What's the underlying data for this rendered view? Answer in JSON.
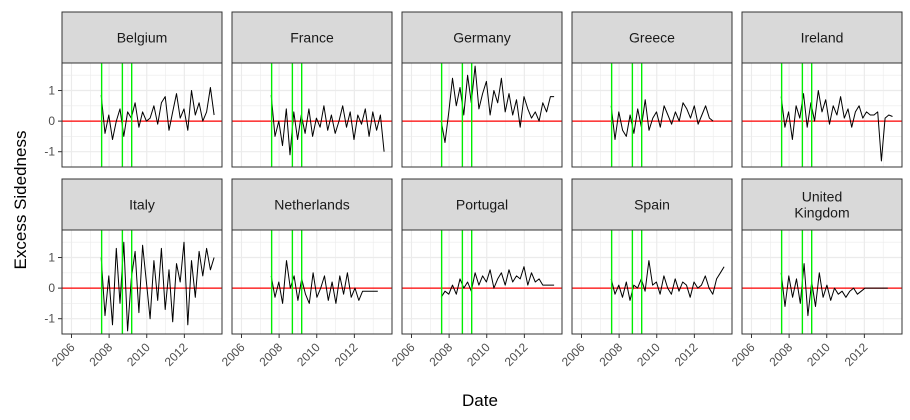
{
  "chart_data": {
    "type": "line",
    "layout": "faceted-grid-2x5",
    "xlabel": "Date",
    "ylabel": "Excess Sidedness",
    "xlim": [
      "2005-07-01",
      "2014-01-01"
    ],
    "ylim": [
      -1.5,
      1.9
    ],
    "x_ticks": [
      "2006",
      "2008",
      "2010",
      "2012"
    ],
    "y_ticks": [
      -1,
      0,
      1
    ],
    "grid": true,
    "colors": {
      "series": "#000000",
      "zero_line": "#ff0000",
      "event_lines": "#00ee00",
      "strip": "#d9d9d9",
      "grid": "#ebebeb"
    },
    "reference_lines": {
      "horizontal": [
        0
      ],
      "vertical": [
        "2007-08-09",
        "2008-09-15",
        "2009-03-15"
      ]
    },
    "facets": [
      {
        "name": "Belgium",
        "start": "2007-08-01",
        "end": "2013-08-01",
        "values": [
          0.85,
          -0.4,
          0.2,
          -0.6,
          0.0,
          0.4,
          -0.5,
          0.3,
          0.1,
          0.6,
          -0.2,
          0.3,
          0.0,
          0.1,
          0.5,
          -0.1,
          0.6,
          0.8,
          -0.3,
          0.3,
          0.9,
          0.1,
          0.4,
          -0.3,
          1.0,
          0.2,
          0.6,
          0.0,
          0.3,
          1.1,
          0.2
        ]
      },
      {
        "name": "France",
        "start": "2007-08-01",
        "end": "2013-08-01",
        "values": [
          0.85,
          -0.5,
          0.0,
          -0.8,
          0.4,
          -1.1,
          0.3,
          -0.6,
          0.2,
          -0.4,
          0.4,
          -0.5,
          0.1,
          -0.2,
          0.5,
          -0.3,
          0.2,
          -0.4,
          0.0,
          0.5,
          -0.2,
          0.3,
          -0.6,
          0.2,
          -0.1,
          0.4,
          -0.5,
          0.3,
          -0.3,
          0.2,
          -1.0
        ]
      },
      {
        "name": "Germany",
        "start": "2007-08-01",
        "end": "2013-08-01",
        "values": [
          0.0,
          -0.7,
          0.3,
          1.4,
          0.5,
          1.1,
          0.2,
          1.5,
          0.6,
          1.8,
          0.4,
          0.9,
          1.3,
          0.2,
          1.0,
          0.6,
          1.4,
          0.3,
          0.9,
          0.2,
          0.7,
          -0.2,
          0.8,
          0.4,
          0.1,
          0.3,
          0.0,
          0.6,
          0.3,
          0.8,
          0.8
        ]
      },
      {
        "name": "Greece",
        "start": "2007-08-01",
        "end": "2013-01-01",
        "values": [
          0.5,
          -0.6,
          0.3,
          -0.3,
          -0.5,
          0.2,
          -0.4,
          0.4,
          -0.2,
          0.7,
          -0.3,
          0.1,
          0.3,
          -0.2,
          0.5,
          0.2,
          -0.1,
          0.3,
          0.0,
          0.6,
          0.4,
          0.1,
          0.5,
          -0.1,
          0.2,
          0.5,
          0.1,
          0.0
        ]
      },
      {
        "name": "Ireland",
        "start": "2007-08-01",
        "end": "2013-07-01",
        "values": [
          0.8,
          -0.2,
          0.3,
          -0.6,
          0.5,
          0.1,
          0.9,
          -0.2,
          0.6,
          0.0,
          1.0,
          0.3,
          0.7,
          -0.1,
          0.5,
          0.2,
          0.8,
          0.1,
          0.4,
          -0.2,
          0.3,
          0.5,
          0.1,
          0.3,
          0.2,
          0.2,
          0.3,
          -1.3,
          0.1,
          0.2,
          0.15
        ]
      },
      {
        "name": "Italy",
        "start": "2007-08-01",
        "end": "2013-08-01",
        "values": [
          1.0,
          -0.9,
          0.4,
          -1.2,
          1.3,
          -0.5,
          1.5,
          -1.4,
          0.3,
          1.2,
          -0.8,
          1.4,
          0.2,
          -1.0,
          0.9,
          -0.4,
          1.3,
          -0.7,
          0.6,
          -1.1,
          0.8,
          0.2,
          1.5,
          -1.2,
          0.9,
          -0.3,
          1.2,
          0.4,
          1.3,
          0.6,
          1.0
        ]
      },
      {
        "name": "Netherlands",
        "start": "2007-08-01",
        "end": "2013-04-01",
        "values": [
          0.4,
          -0.3,
          0.2,
          -0.5,
          0.9,
          0.0,
          0.4,
          -0.4,
          0.3,
          -0.2,
          -0.5,
          0.5,
          -0.3,
          0.0,
          0.4,
          -0.4,
          0.2,
          -0.5,
          0.4,
          -0.2,
          0.5,
          -0.3,
          0.0,
          -0.4,
          -0.1,
          -0.1,
          -0.1,
          -0.1,
          -0.1
        ]
      },
      {
        "name": "Portugal",
        "start": "2007-08-01",
        "end": "2013-08-01",
        "values": [
          -0.3,
          -0.1,
          -0.2,
          0.1,
          -0.2,
          0.3,
          0.0,
          0.2,
          -0.1,
          0.5,
          0.1,
          0.4,
          0.2,
          0.6,
          0.0,
          0.3,
          0.5,
          0.1,
          0.6,
          0.2,
          0.4,
          0.3,
          0.7,
          0.1,
          0.5,
          0.2,
          0.3,
          0.1,
          0.1,
          0.1,
          0.1
        ]
      },
      {
        "name": "Spain",
        "start": "2007-08-01",
        "end": "2013-08-01",
        "values": [
          0.3,
          -0.2,
          0.1,
          -0.3,
          0.2,
          -0.4,
          0.1,
          0.0,
          0.3,
          -0.1,
          0.9,
          0.1,
          0.2,
          -0.2,
          0.4,
          0.0,
          -0.2,
          0.3,
          -0.1,
          0.2,
          0.1,
          -0.3,
          0.2,
          0.0,
          0.1,
          0.4,
          0.0,
          -0.2,
          0.3,
          0.5,
          0.7
        ]
      },
      {
        "name": "United\nKingdom",
        "start": "2007-08-01",
        "end": "2013-04-01",
        "values": [
          0.5,
          -0.6,
          0.4,
          -0.3,
          0.3,
          -0.5,
          0.8,
          -0.9,
          0.2,
          -0.6,
          0.5,
          -0.3,
          0.1,
          -0.4,
          0.0,
          -0.2,
          -0.1,
          -0.3,
          -0.1,
          0.0,
          -0.2,
          -0.1,
          0.0,
          0.0,
          0.0,
          0.0,
          0.0,
          0.0,
          0.0
        ]
      }
    ]
  }
}
